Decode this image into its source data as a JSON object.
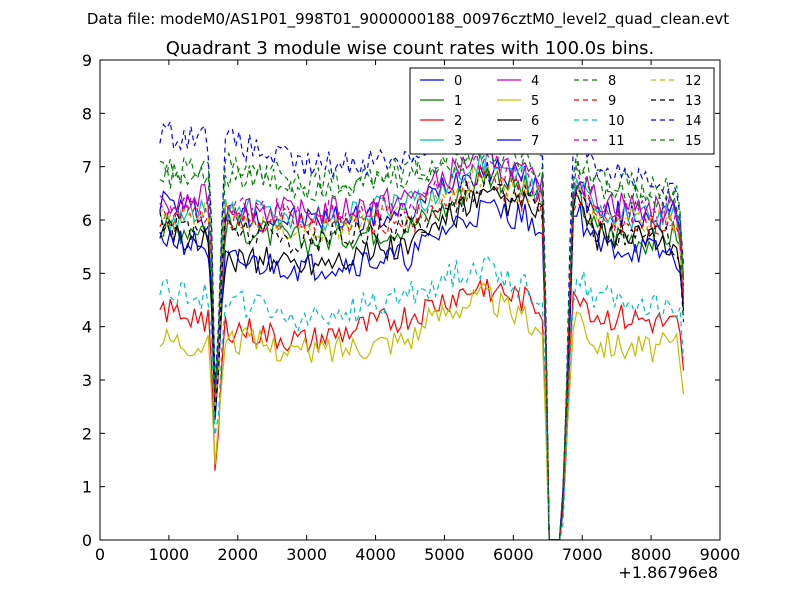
{
  "chart_data": {
    "type": "line",
    "suptitle": "Data file: modeM0/AS1P01_998T01_9000000188_00976cztM0_level2_quad_clean.evt",
    "title": "Quadrant 3 module wise count rates with 100.0s bins.",
    "xlabel": "",
    "ylabel": "",
    "x_offset_label": "+1.86796e8",
    "xlim": [
      0,
      9000
    ],
    "ylim": [
      0,
      9
    ],
    "xticks": [
      "0",
      "1000",
      "2000",
      "3000",
      "4000",
      "5000",
      "6000",
      "7000",
      "8000",
      "9000"
    ],
    "yticks": [
      "0",
      "1",
      "2",
      "3",
      "4",
      "5",
      "6",
      "7",
      "8",
      "9"
    ],
    "grid": false,
    "legend_position": "top-right",
    "legend_columns": 4,
    "series": [
      {
        "name": "0",
        "color": "#0000ff",
        "style": "solid",
        "anchors": [
          [
            870,
            6.4
          ],
          [
            1500,
            6.1
          ],
          [
            1600,
            5.8
          ],
          [
            1680,
            1.8
          ],
          [
            1800,
            6.1
          ],
          [
            3000,
            6.0
          ],
          [
            4500,
            6.1
          ],
          [
            5000,
            6.7
          ],
          [
            5600,
            7.0
          ],
          [
            6300,
            6.7
          ],
          [
            6450,
            6.5
          ],
          [
            6500,
            0
          ],
          [
            6700,
            0
          ],
          [
            6880,
            6.8
          ],
          [
            7200,
            6.1
          ],
          [
            8000,
            6.1
          ],
          [
            8400,
            6.1
          ],
          [
            8500,
            4.5
          ]
        ]
      },
      {
        "name": "1",
        "color": "#008000",
        "style": "solid",
        "anchors": [
          [
            870,
            5.8
          ],
          [
            1500,
            5.9
          ],
          [
            1600,
            5.7
          ],
          [
            1680,
            2.3
          ],
          [
            1800,
            5.9
          ],
          [
            3000,
            5.6
          ],
          [
            4500,
            5.9
          ],
          [
            5000,
            6.2
          ],
          [
            5600,
            6.9
          ],
          [
            6300,
            6.5
          ],
          [
            6450,
            6.3
          ],
          [
            6500,
            0
          ],
          [
            6700,
            0
          ],
          [
            6880,
            6.6
          ],
          [
            7200,
            5.8
          ],
          [
            8000,
            5.6
          ],
          [
            8400,
            5.8
          ],
          [
            8500,
            3.9
          ]
        ]
      },
      {
        "name": "2",
        "color": "#ff0000",
        "style": "solid",
        "anchors": [
          [
            870,
            4.3
          ],
          [
            1500,
            4.2
          ],
          [
            1600,
            4.1
          ],
          [
            1680,
            0.9
          ],
          [
            1800,
            4.0
          ],
          [
            3000,
            3.7
          ],
          [
            4500,
            4.2
          ],
          [
            5000,
            4.5
          ],
          [
            5600,
            4.8
          ],
          [
            6300,
            4.4
          ],
          [
            6450,
            4.3
          ],
          [
            6500,
            0
          ],
          [
            6700,
            0
          ],
          [
            6880,
            4.8
          ],
          [
            7200,
            4.2
          ],
          [
            8000,
            4.1
          ],
          [
            8400,
            4.0
          ],
          [
            8500,
            2.6
          ]
        ]
      },
      {
        "name": "3",
        "color": "#00bfbf",
        "style": "solid",
        "anchors": [
          [
            870,
            6.0
          ],
          [
            1500,
            6.2
          ],
          [
            1600,
            6.1
          ],
          [
            1680,
            2.0
          ],
          [
            1800,
            6.3
          ],
          [
            3000,
            6.0
          ],
          [
            4500,
            6.3
          ],
          [
            5000,
            6.6
          ],
          [
            5600,
            7.2
          ],
          [
            6300,
            6.6
          ],
          [
            6450,
            6.5
          ],
          [
            6500,
            0
          ],
          [
            6700,
            0
          ],
          [
            6880,
            6.8
          ],
          [
            7200,
            6.2
          ],
          [
            8000,
            6.0
          ],
          [
            8400,
            6.1
          ],
          [
            8500,
            4.0
          ]
        ]
      },
      {
        "name": "4",
        "color": "#bf00bf",
        "style": "solid",
        "anchors": [
          [
            870,
            6.2
          ],
          [
            1500,
            6.4
          ],
          [
            1600,
            6.4
          ],
          [
            1680,
            2.1
          ],
          [
            1800,
            6.3
          ],
          [
            3000,
            6.1
          ],
          [
            4500,
            6.4
          ],
          [
            5000,
            6.8
          ],
          [
            5600,
            7.3
          ],
          [
            6300,
            6.7
          ],
          [
            6450,
            6.6
          ],
          [
            6500,
            0
          ],
          [
            6700,
            0
          ],
          [
            6880,
            6.9
          ],
          [
            7200,
            6.4
          ],
          [
            8000,
            6.2
          ],
          [
            8400,
            6.2
          ],
          [
            8500,
            4.2
          ]
        ]
      },
      {
        "name": "5",
        "color": "#bfbf00",
        "style": "solid",
        "anchors": [
          [
            870,
            3.8
          ],
          [
            1500,
            3.7
          ],
          [
            1600,
            3.6
          ],
          [
            1680,
            1.1
          ],
          [
            1800,
            3.8
          ],
          [
            3000,
            3.5
          ],
          [
            4500,
            3.8
          ],
          [
            5000,
            4.3
          ],
          [
            5600,
            4.6
          ],
          [
            6300,
            4.0
          ],
          [
            6450,
            3.9
          ],
          [
            6500,
            0
          ],
          [
            6700,
            0
          ],
          [
            6880,
            4.4
          ],
          [
            7200,
            3.7
          ],
          [
            8000,
            3.6
          ],
          [
            8400,
            3.7
          ],
          [
            8500,
            2.4
          ]
        ]
      },
      {
        "name": "6",
        "color": "#000000",
        "style": "solid",
        "anchors": [
          [
            870,
            5.7
          ],
          [
            1500,
            5.6
          ],
          [
            1600,
            5.5
          ],
          [
            1680,
            1.9
          ],
          [
            1800,
            5.3
          ],
          [
            3000,
            5.2
          ],
          [
            4500,
            5.5
          ],
          [
            5000,
            6.0
          ],
          [
            5600,
            6.4
          ],
          [
            6300,
            6.2
          ],
          [
            6450,
            6.1
          ],
          [
            6500,
            0
          ],
          [
            6700,
            0
          ],
          [
            6880,
            6.4
          ],
          [
            7200,
            5.7
          ],
          [
            8000,
            5.6
          ],
          [
            8400,
            5.5
          ],
          [
            8500,
            3.7
          ]
        ]
      },
      {
        "name": "7",
        "color": "#0000ff",
        "style": "solid",
        "anchors": [
          [
            870,
            5.7
          ],
          [
            1500,
            5.5
          ],
          [
            1600,
            5.4
          ],
          [
            1680,
            1.8
          ],
          [
            1800,
            5.2
          ],
          [
            3000,
            5.1
          ],
          [
            4500,
            5.3
          ],
          [
            5000,
            5.8
          ],
          [
            5600,
            6.2
          ],
          [
            6300,
            6.0
          ],
          [
            6450,
            5.9
          ],
          [
            6500,
            0
          ],
          [
            6700,
            0
          ],
          [
            6880,
            6.3
          ],
          [
            7200,
            5.5
          ],
          [
            8000,
            5.4
          ],
          [
            8400,
            5.3
          ],
          [
            8500,
            3.8
          ]
        ]
      },
      {
        "name": "8",
        "color": "#008000",
        "style": "dashed",
        "anchors": [
          [
            870,
            6.9
          ],
          [
            1500,
            6.9
          ],
          [
            1600,
            6.8
          ],
          [
            1680,
            2.2
          ],
          [
            1800,
            7.0
          ],
          [
            3000,
            6.7
          ],
          [
            4500,
            6.9
          ],
          [
            5000,
            7.1
          ],
          [
            5600,
            7.5
          ],
          [
            6300,
            7.3
          ],
          [
            6450,
            7.1
          ],
          [
            6500,
            0
          ],
          [
            6700,
            0
          ],
          [
            6880,
            7.2
          ],
          [
            7200,
            6.8
          ],
          [
            8000,
            6.6
          ],
          [
            8400,
            6.5
          ],
          [
            8500,
            4.4
          ]
        ]
      },
      {
        "name": "9",
        "color": "#ff0000",
        "style": "dashed",
        "anchors": [
          [
            870,
            6.1
          ],
          [
            1500,
            6.0
          ],
          [
            1600,
            6.0
          ],
          [
            1680,
            2.0
          ],
          [
            1800,
            6.1
          ],
          [
            3000,
            5.9
          ],
          [
            4500,
            6.0
          ],
          [
            5000,
            6.3
          ],
          [
            5600,
            6.8
          ],
          [
            6300,
            6.3
          ],
          [
            6450,
            6.2
          ],
          [
            6500,
            0
          ],
          [
            6700,
            0
          ],
          [
            6880,
            6.6
          ],
          [
            7200,
            6.0
          ],
          [
            8000,
            5.9
          ],
          [
            8400,
            5.9
          ],
          [
            8500,
            4.0
          ]
        ]
      },
      {
        "name": "10",
        "color": "#00bfbf",
        "style": "dashed",
        "anchors": [
          [
            870,
            4.7
          ],
          [
            1500,
            4.6
          ],
          [
            1600,
            4.5
          ],
          [
            1680,
            1.6
          ],
          [
            1800,
            4.5
          ],
          [
            3000,
            4.1
          ],
          [
            4500,
            4.6
          ],
          [
            5000,
            4.9
          ],
          [
            5600,
            5.2
          ],
          [
            6300,
            4.6
          ],
          [
            6450,
            4.5
          ],
          [
            6500,
            0
          ],
          [
            6700,
            0
          ],
          [
            6880,
            4.9
          ],
          [
            7200,
            4.6
          ],
          [
            8000,
            4.4
          ],
          [
            8400,
            4.4
          ],
          [
            8500,
            3.0
          ]
        ]
      },
      {
        "name": "11",
        "color": "#bf00bf",
        "style": "dashed",
        "anchors": [
          [
            870,
            6.3
          ],
          [
            1500,
            6.2
          ],
          [
            1600,
            6.2
          ],
          [
            1680,
            2.1
          ],
          [
            1800,
            6.3
          ],
          [
            3000,
            6.1
          ],
          [
            4500,
            6.3
          ],
          [
            5000,
            6.6
          ],
          [
            5600,
            7.1
          ],
          [
            6300,
            6.6
          ],
          [
            6450,
            6.5
          ],
          [
            6500,
            0
          ],
          [
            6700,
            0
          ],
          [
            6880,
            6.8
          ],
          [
            7200,
            6.3
          ],
          [
            8000,
            6.1
          ],
          [
            8400,
            6.1
          ],
          [
            8500,
            4.1
          ]
        ]
      },
      {
        "name": "12",
        "color": "#bfbf00",
        "style": "dashed",
        "anchors": [
          [
            870,
            6.0
          ],
          [
            1500,
            6.1
          ],
          [
            1600,
            6.0
          ],
          [
            1680,
            2.0
          ],
          [
            1800,
            6.1
          ],
          [
            3000,
            5.8
          ],
          [
            4500,
            6.1
          ],
          [
            5000,
            6.4
          ],
          [
            5600,
            6.9
          ],
          [
            6300,
            6.4
          ],
          [
            6450,
            6.3
          ],
          [
            6500,
            0
          ],
          [
            6700,
            0
          ],
          [
            6880,
            6.6
          ],
          [
            7200,
            6.1
          ],
          [
            8000,
            6.0
          ],
          [
            8400,
            6.0
          ],
          [
            8500,
            4.0
          ]
        ]
      },
      {
        "name": "13",
        "color": "#000000",
        "style": "dashed",
        "anchors": [
          [
            870,
            5.9
          ],
          [
            1500,
            5.8
          ],
          [
            1600,
            5.8
          ],
          [
            1680,
            1.9
          ],
          [
            1800,
            5.9
          ],
          [
            3000,
            5.6
          ],
          [
            4500,
            5.9
          ],
          [
            5000,
            6.2
          ],
          [
            5600,
            6.7
          ],
          [
            6300,
            6.3
          ],
          [
            6450,
            6.2
          ],
          [
            6500,
            0
          ],
          [
            6700,
            0
          ],
          [
            6880,
            6.5
          ],
          [
            7200,
            5.8
          ],
          [
            8000,
            5.7
          ],
          [
            8400,
            5.6
          ],
          [
            8500,
            3.8
          ]
        ]
      },
      {
        "name": "14",
        "color": "#0000ff",
        "style": "dashed",
        "anchors": [
          [
            870,
            7.6
          ],
          [
            1500,
            7.6
          ],
          [
            1600,
            7.4
          ],
          [
            1680,
            2.3
          ],
          [
            1800,
            7.5
          ],
          [
            3000,
            7.0
          ],
          [
            4500,
            7.2
          ],
          [
            5000,
            7.6
          ],
          [
            5600,
            8.2
          ],
          [
            6300,
            7.8
          ],
          [
            6450,
            7.6
          ],
          [
            6500,
            0
          ],
          [
            6700,
            0
          ],
          [
            6880,
            7.9
          ],
          [
            7200,
            7.1
          ],
          [
            8000,
            6.6
          ],
          [
            8400,
            6.4
          ],
          [
            8500,
            4.8
          ]
        ]
      },
      {
        "name": "15",
        "color": "#008000",
        "style": "dashed",
        "anchors": [
          [
            870,
            6.8
          ],
          [
            1500,
            6.8
          ],
          [
            1600,
            6.7
          ],
          [
            1680,
            2.2
          ],
          [
            1800,
            6.9
          ],
          [
            3000,
            6.6
          ],
          [
            4500,
            6.8
          ],
          [
            5000,
            7.0
          ],
          [
            5600,
            7.3
          ],
          [
            6300,
            7.1
          ],
          [
            6450,
            7.0
          ],
          [
            6500,
            0
          ],
          [
            6700,
            0
          ],
          [
            6880,
            7.1
          ],
          [
            7200,
            6.6
          ],
          [
            8000,
            6.4
          ],
          [
            8400,
            6.3
          ],
          [
            8500,
            4.3
          ]
        ]
      }
    ]
  }
}
